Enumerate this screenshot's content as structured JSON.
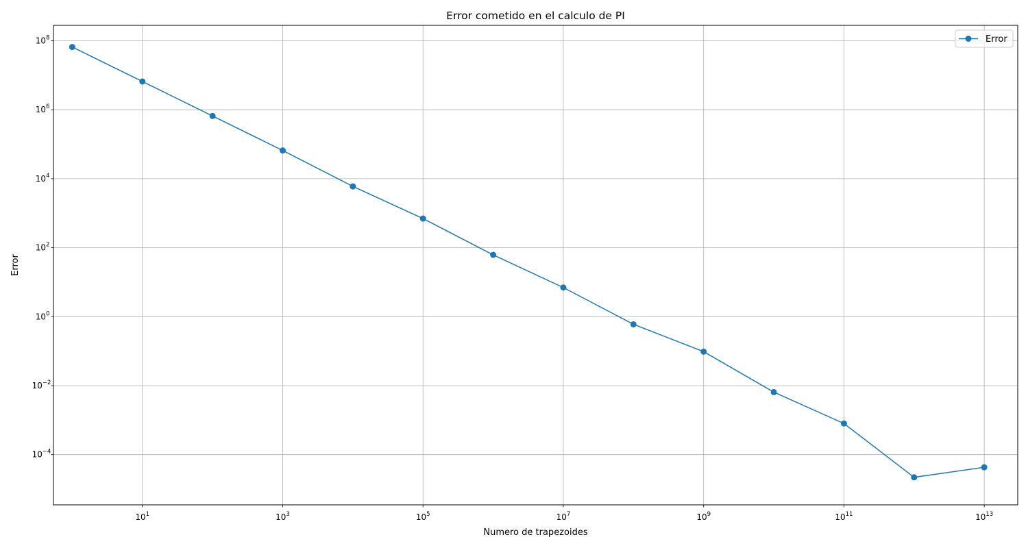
{
  "chart_data": {
    "type": "line",
    "title": "Error cometido en el calculo de PI",
    "xlabel": "Numero de trapezoides",
    "ylabel": "Error",
    "xscale": "log",
    "yscale": "log",
    "xlim": [
      0.54,
      30000000000000
    ],
    "ylim": [
      3.5e-06,
      280000000
    ],
    "grid": true,
    "legend_position": "top-right",
    "x_ticks": [
      {
        "base": "10",
        "exp": "1",
        "value": 10
      },
      {
        "base": "10",
        "exp": "3",
        "value": 1000
      },
      {
        "base": "10",
        "exp": "5",
        "value": 100000
      },
      {
        "base": "10",
        "exp": "7",
        "value": 10000000
      },
      {
        "base": "10",
        "exp": "9",
        "value": 1000000000
      },
      {
        "base": "10",
        "exp": "11",
        "value": 100000000000
      },
      {
        "base": "10",
        "exp": "13",
        "value": 10000000000000
      }
    ],
    "y_ticks": [
      {
        "base": "10",
        "exp": "8",
        "value": 100000000
      },
      {
        "base": "10",
        "exp": "6",
        "value": 1000000
      },
      {
        "base": "10",
        "exp": "4",
        "value": 10000
      },
      {
        "base": "10",
        "exp": "2",
        "value": 100
      },
      {
        "base": "10",
        "exp": "0",
        "value": 1
      },
      {
        "base": "10",
        "exp": "−2",
        "value": 0.01
      },
      {
        "base": "10",
        "exp": "−4",
        "value": 0.0001
      }
    ],
    "series": [
      {
        "name": "Error",
        "color": "#1f77b4",
        "marker": "circle",
        "x": [
          1,
          10,
          100,
          1000,
          10000,
          100000,
          1000000,
          10000000,
          100000000,
          1000000000,
          10000000000,
          100000000000,
          1000000000000,
          10000000000000
        ],
        "y": [
          66000000,
          6600000,
          660000,
          66000,
          6000,
          700,
          62,
          7,
          0.6,
          0.097,
          0.0065,
          0.0008,
          2.2e-05,
          4.3e-05
        ]
      }
    ]
  }
}
